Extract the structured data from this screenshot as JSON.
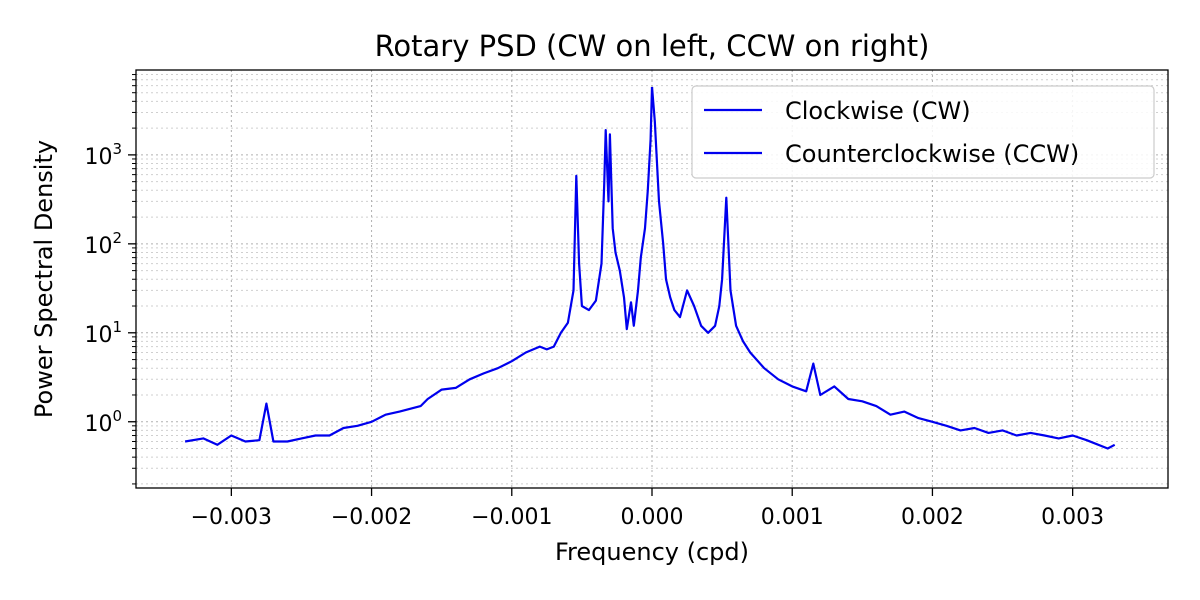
{
  "chart_data": {
    "type": "line",
    "title": "Rotary PSD (CW on left, CCW on right)",
    "xlabel": "Frequency (cpd)",
    "ylabel": "Power Spectral Density",
    "xlim": [
      -0.00368,
      0.00368
    ],
    "ylim": [
      0.18,
      9000
    ],
    "yscale": "log",
    "grid": true,
    "legend_position": "top-right",
    "line_color": "#0000ee",
    "x_ticks": [
      {
        "value": -0.003,
        "label": "−0.003"
      },
      {
        "value": -0.002,
        "label": "−0.002"
      },
      {
        "value": -0.001,
        "label": "−0.001"
      },
      {
        "value": 0.0,
        "label": "0.000"
      },
      {
        "value": 0.001,
        "label": "0.001"
      },
      {
        "value": 0.002,
        "label": "0.002"
      },
      {
        "value": 0.003,
        "label": "0.003"
      }
    ],
    "y_ticks": [
      {
        "value": 1,
        "base": "10",
        "exp": "0"
      },
      {
        "value": 10,
        "base": "10",
        "exp": "1"
      },
      {
        "value": 100,
        "base": "10",
        "exp": "2"
      },
      {
        "value": 1000,
        "base": "10",
        "exp": "3"
      }
    ],
    "series": [
      {
        "name": "Clockwise (CW)",
        "color": "#0000ee",
        "x": [
          -0.00333,
          -0.0032,
          -0.0031,
          -0.003,
          -0.0029,
          -0.0028,
          -0.00275,
          -0.0027,
          -0.0026,
          -0.0025,
          -0.0024,
          -0.0023,
          -0.0022,
          -0.0021,
          -0.002,
          -0.0019,
          -0.0018,
          -0.00165,
          -0.0016,
          -0.0015,
          -0.0014,
          -0.0013,
          -0.0012,
          -0.0011,
          -0.001,
          -0.0009,
          -0.0008,
          -0.00075,
          -0.0007,
          -0.00065,
          -0.0006,
          -0.00056,
          -0.00054,
          -0.00052,
          -0.0005,
          -0.00045,
          -0.0004,
          -0.00036,
          -0.00034,
          -0.00033,
          -0.00031,
          -0.0003,
          -0.00028,
          -0.00026,
          -0.00023,
          -0.0002,
          -0.00018,
          -0.00015,
          -0.00013,
          -0.0001,
          -8e-05,
          -5e-05,
          -3e-05,
          -1e-05,
          0.0
        ],
        "values": [
          0.6,
          0.65,
          0.55,
          0.7,
          0.6,
          0.62,
          1.6,
          0.6,
          0.6,
          0.65,
          0.7,
          0.7,
          0.85,
          0.9,
          1.0,
          1.2,
          1.3,
          1.5,
          1.8,
          2.3,
          2.4,
          3.0,
          3.5,
          4.0,
          4.8,
          6.0,
          7.0,
          6.5,
          7.0,
          10.0,
          13.0,
          30.0,
          580.0,
          60.0,
          20.0,
          18.0,
          23.0,
          60.0,
          500.0,
          1900.0,
          300.0,
          1700.0,
          150.0,
          80.0,
          50.0,
          25.0,
          11.0,
          22.0,
          12.0,
          30.0,
          70.0,
          150.0,
          400.0,
          1500.0,
          5800.0
        ]
      },
      {
        "name": "Counterclockwise (CCW)",
        "color": "#0000ee",
        "x": [
          0.0,
          2e-05,
          5e-05,
          8e-05,
          0.0001,
          0.00013,
          0.00016,
          0.0002,
          0.00025,
          0.0003,
          0.00035,
          0.0004,
          0.00045,
          0.00048,
          0.0005,
          0.00053,
          0.00056,
          0.0006,
          0.00065,
          0.0007,
          0.0008,
          0.0009,
          0.001,
          0.0011,
          0.00115,
          0.0012,
          0.0013,
          0.0014,
          0.0015,
          0.0016,
          0.0017,
          0.0018,
          0.0019,
          0.002,
          0.0021,
          0.0022,
          0.0023,
          0.0024,
          0.0025,
          0.0026,
          0.0027,
          0.0028,
          0.0029,
          0.003,
          0.0031,
          0.00325,
          0.0033
        ],
        "values": [
          5800.0,
          2400.0,
          300.0,
          100.0,
          40.0,
          25.0,
          18.0,
          15.0,
          30.0,
          20.0,
          12.0,
          10.0,
          12.0,
          20.0,
          40.0,
          330.0,
          30.0,
          12.0,
          8.0,
          6.0,
          4.0,
          3.0,
          2.5,
          2.2,
          4.5,
          2.0,
          2.5,
          1.8,
          1.7,
          1.5,
          1.2,
          1.3,
          1.1,
          1.0,
          0.9,
          0.8,
          0.85,
          0.75,
          0.8,
          0.7,
          0.75,
          0.7,
          0.65,
          0.7,
          0.62,
          0.5,
          0.55
        ]
      }
    ]
  }
}
